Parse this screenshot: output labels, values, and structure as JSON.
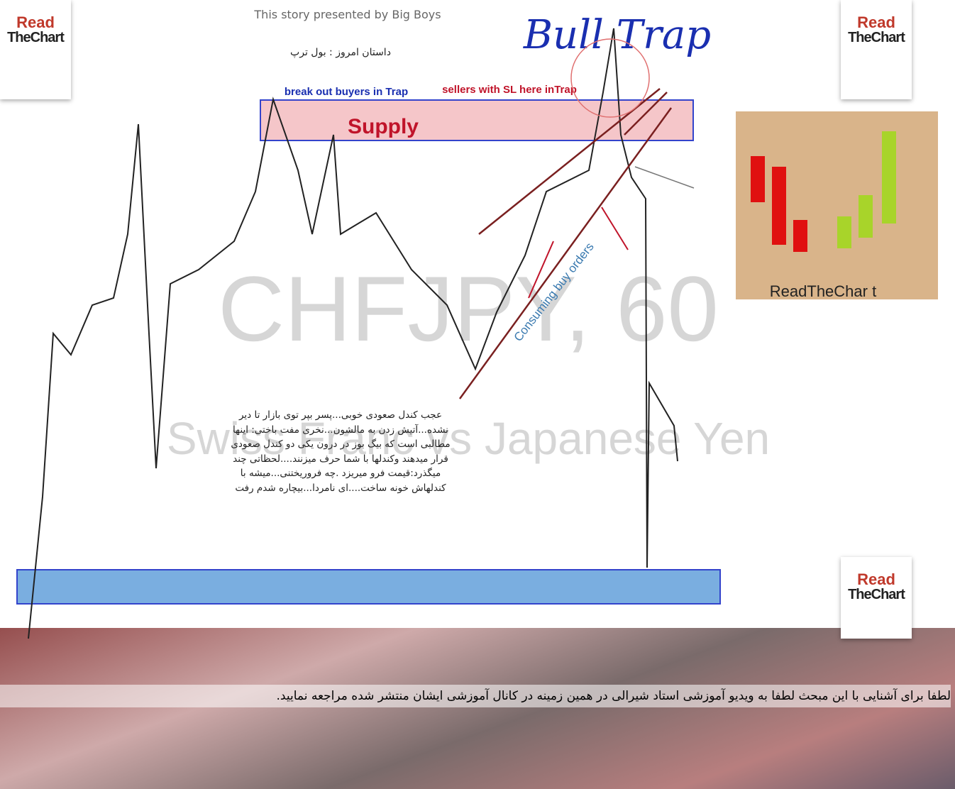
{
  "story_credit": "This story presented by Big Boys",
  "story_title": "داستان امروز : بول ترپ",
  "headline": "Bull Trap",
  "annotations": {
    "left": "break out buyers in Trap",
    "right": "sellers with SL here inTrap",
    "zone": "Supply",
    "trend": "Consuming buy orders"
  },
  "watermark": {
    "symbol": "CHFJPY, 60",
    "name": "Swiss Franc vs Japanese Yen"
  },
  "story_lines": [
    "عجب کندل صعودی خوبی...پسر بپر توی بازار تا دیر",
    "نشده...آتیش زدن به مالشون...نخری مفت باختی: اینها",
    "مطالبی است که بیگ بوز در درون یکی دو کندل صعودی",
    "قرار میدهند وکندلها با شما حرف میزنند....لحظاتی چند",
    "میگذرد:قیمت فرو میریزد .چه فروریختنی...میشه با",
    "کندلهاش خونه ساخت....ای نامردا...بیچاره شدم رفت"
  ],
  "logos": {
    "read": "Read",
    "the_chart": "TheChart",
    "brand": "ReadTheChar t"
  },
  "footer_text": "لطفا برای آشنایی با این مبحث لطفا به ویدیو آموزشی استاد شیرالی در همین زمینه در کانال آموزشی ایشان منتشر شده مراجعه نمایید."
}
